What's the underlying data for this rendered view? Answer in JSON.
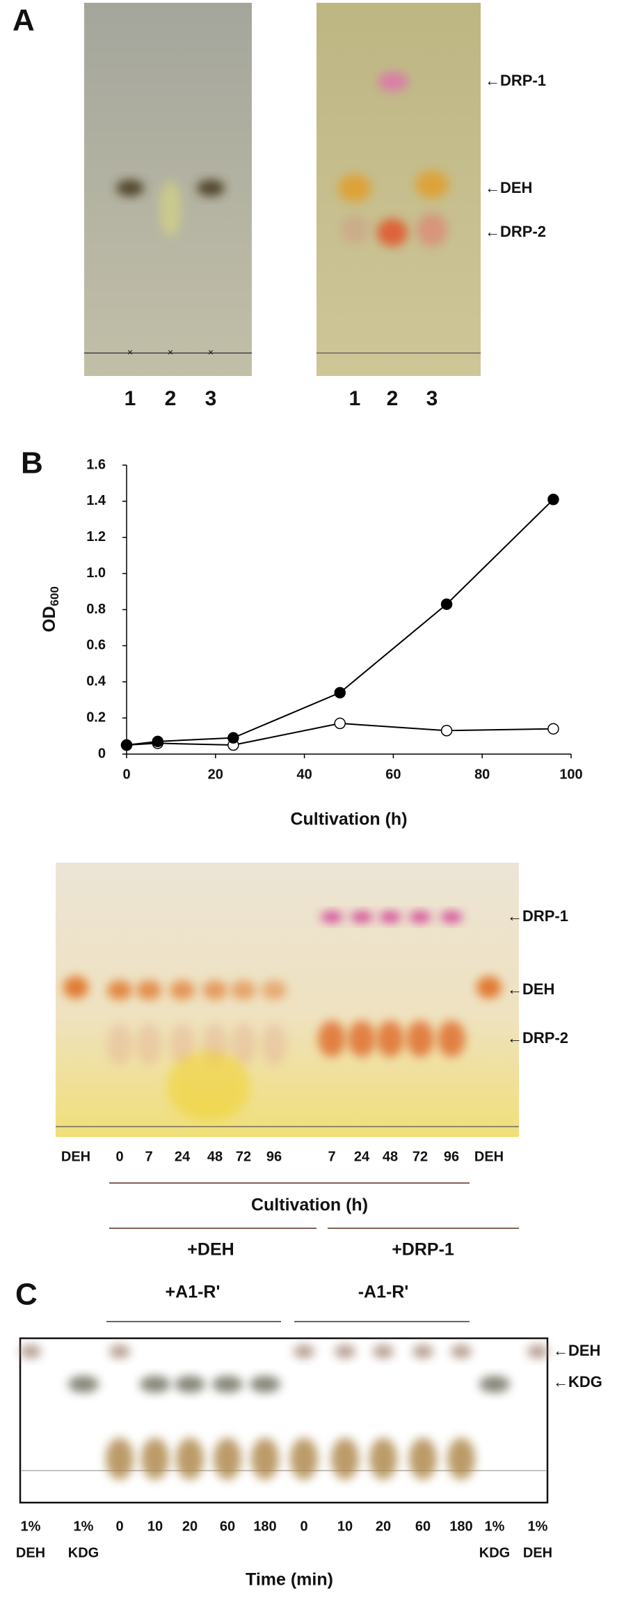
{
  "panel_a": {
    "label": "A",
    "lanes_left": [
      "1",
      "2",
      "3"
    ],
    "lanes_right": [
      "1",
      "2",
      "3"
    ],
    "annotations": [
      "←DRP-1",
      "←DEH",
      "←DRP-2"
    ]
  },
  "chart_data": {
    "type": "line",
    "panel_label": "B",
    "x_label": "Cultivation (h)",
    "y_label": "OD",
    "y_label_sub": "600",
    "x": [
      0,
      7,
      24,
      48,
      72,
      96
    ],
    "series": [
      {
        "color": "#000000",
        "marker_fill": "#000000",
        "values": [
          0.05,
          0.07,
          0.09,
          0.34,
          0.83,
          1.41
        ]
      },
      {
        "color": "#000000",
        "marker_fill": "#ffffff",
        "values": [
          0.05,
          0.06,
          0.05,
          0.17,
          0.13,
          0.14
        ]
      }
    ],
    "xlim": [
      0,
      100
    ],
    "xticks": [
      0,
      20,
      40,
      60,
      80,
      100
    ],
    "ylim": [
      0,
      1.6
    ],
    "yticks": [
      0,
      0.2,
      0.4,
      0.6,
      0.8,
      {
        "value": 1,
        "label": "1.0"
      },
      1.2,
      1.4,
      1.6
    ],
    "grid": false
  },
  "panel_b_tlc": {
    "lanes": [
      "DEH",
      "0",
      "7",
      "24",
      "48",
      "72",
      "96",
      "7",
      "24",
      "48",
      "72",
      "96",
      "DEH"
    ],
    "annotations": [
      "←DRP-1",
      "←DEH",
      "←DRP-2"
    ],
    "x_label": "Cultivation (h)",
    "groups": [
      "+DEH",
      "+DRP-1"
    ]
  },
  "panel_c": {
    "label": "C",
    "groups": [
      "+A1-R'",
      "-A1-R'"
    ],
    "lanes": [
      "1%",
      "1%",
      "0",
      "10",
      "20",
      "60",
      "180",
      "0",
      "10",
      "20",
      "60",
      "180",
      "1%",
      "1%"
    ],
    "lane_names": [
      "DEH",
      "KDG",
      "KDG",
      "DEH"
    ],
    "annotations": [
      "←DEH",
      "←KDG"
    ],
    "x_label": "Time (min)"
  }
}
